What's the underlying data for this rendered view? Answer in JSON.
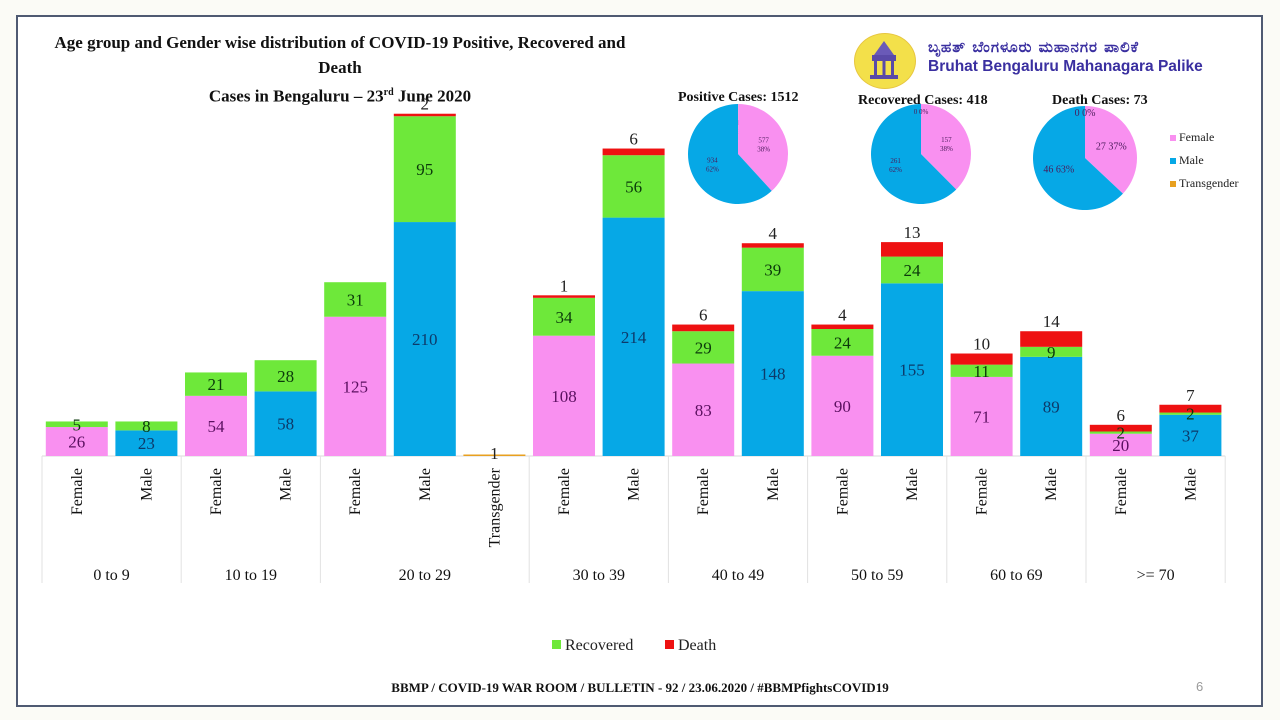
{
  "header": {
    "title_line1": "Age group and Gender wise distribution of COVID-19 Positive, Recovered and Death",
    "title_line2_pre": "Cases in Bengaluru – 23",
    "title_line2_sup": "rd",
    "title_line2_post": " June 2020",
    "org_name_kannada": "ಬೃಹತ್ ಬೆಂಗಳೂರು ಮಹಾನಗರ ಪಾಲಿಕೆ",
    "org_name_english": "Bruhat Bengaluru Mahanagara Palike",
    "logo_icon": "bbmp-temple-logo-icon"
  },
  "footer": {
    "text": "BBMP / COVID-19 WAR ROOM / BULLETIN - 92 / 23.06.2020 / #BBMPfightsCOVID19",
    "page_number": "6"
  },
  "colors": {
    "female": "#f990f0",
    "male": "#06a8e6",
    "transgender": "#e8a020",
    "recovered": "#6ee83a",
    "death": "#ee1111"
  },
  "chart_data": [
    {
      "type": "bar",
      "stacked": true,
      "title": "Age group and Gender wise distribution of COVID-19 Positive, Recovered and Death Cases in Bengaluru – 23rd June 2020",
      "xlabel": "",
      "ylabel": "",
      "grid": false,
      "legend": {
        "position": "bottom",
        "entries": [
          "Recovered",
          "Death"
        ]
      },
      "groups": [
        "0 to 9",
        "10 to 19",
        "20 to 29",
        "30 to 39",
        "40 to 49",
        "50 to 59",
        "60 to 69",
        ">= 70"
      ],
      "bars": [
        {
          "group": "0 to 9",
          "gender": "Female",
          "positive": 26,
          "recovered": 5,
          "death": 0,
          "death_label": ""
        },
        {
          "group": "0 to 9",
          "gender": "Male",
          "positive": 23,
          "recovered": 8,
          "death": 0,
          "death_label": ""
        },
        {
          "group": "10 to 19",
          "gender": "Female",
          "positive": 54,
          "recovered": 21,
          "death": 0,
          "death_label": ""
        },
        {
          "group": "10 to 19",
          "gender": "Male",
          "positive": 58,
          "recovered": 28,
          "death": 0,
          "death_label": ""
        },
        {
          "group": "20 to 29",
          "gender": "Female",
          "positive": 125,
          "recovered": 31,
          "death": 0,
          "death_label": ""
        },
        {
          "group": "20 to 29",
          "gender": "Male",
          "positive": 210,
          "recovered": 95,
          "death": 2,
          "death_label": "2"
        },
        {
          "group": "20 to 29",
          "gender": "Transgender",
          "positive": 1,
          "recovered": 0,
          "death": 0,
          "death_label": "",
          "positive_label": "1"
        },
        {
          "group": "30 to 39",
          "gender": "Female",
          "positive": 108,
          "recovered": 34,
          "death": 1,
          "death_label": "1"
        },
        {
          "group": "30 to 39",
          "gender": "Male",
          "positive": 214,
          "recovered": 56,
          "death": 6,
          "death_label": "6"
        },
        {
          "group": "40 to 49",
          "gender": "Female",
          "positive": 83,
          "recovered": 29,
          "death": 6,
          "death_label": "6"
        },
        {
          "group": "40 to 49",
          "gender": "Male",
          "positive": 148,
          "recovered": 39,
          "death": 4,
          "death_label": "4"
        },
        {
          "group": "50 to 59",
          "gender": "Female",
          "positive": 90,
          "recovered": 24,
          "death": 4,
          "death_label": "4"
        },
        {
          "group": "50 to 59",
          "gender": "Male",
          "positive": 155,
          "recovered": 24,
          "death": 13,
          "death_label": "13"
        },
        {
          "group": "60 to 69",
          "gender": "Female",
          "positive": 71,
          "recovered": 11,
          "death": 10,
          "death_label": "10"
        },
        {
          "group": "60 to 69",
          "gender": "Male",
          "positive": 89,
          "recovered": 9,
          "death": 14,
          "death_label": "14"
        },
        {
          "group": ">= 70",
          "gender": "Female",
          "positive": 20,
          "recovered": 2,
          "death": 6,
          "death_label": "6"
        },
        {
          "group": ">= 70",
          "gender": "Male",
          "positive": 37,
          "recovered": 2,
          "death": 7,
          "death_label": "7"
        }
      ]
    },
    {
      "type": "pie",
      "title": "Positive Cases:  1512",
      "slices": [
        {
          "label": "Female",
          "value": 577,
          "percent_label": "577\n38%"
        },
        {
          "label": "Male",
          "value": 934,
          "percent_label": "934\n62%"
        },
        {
          "label": "Transgender",
          "value": 1,
          "percent_label": "1\n0%"
        }
      ]
    },
    {
      "type": "pie",
      "title": "Recovered Cases: 418",
      "slices": [
        {
          "label": "Female",
          "value": 157,
          "percent_label": "157\n38%"
        },
        {
          "label": "Male",
          "value": 261,
          "percent_label": "261\n62%"
        },
        {
          "label": "Transgender",
          "value": 0,
          "percent_label": "0 0%"
        }
      ]
    },
    {
      "type": "pie",
      "title": "Death Cases: 73",
      "slices": [
        {
          "label": "Female",
          "value": 27,
          "percent_label": "27 37%"
        },
        {
          "label": "Male",
          "value": 46,
          "percent_label": "46 63%"
        },
        {
          "label": "Transgender",
          "value": 0,
          "percent_label": "0 0%"
        }
      ],
      "legend": {
        "position": "right",
        "entries": [
          "Female",
          "Male",
          "Transgender"
        ]
      }
    }
  ]
}
